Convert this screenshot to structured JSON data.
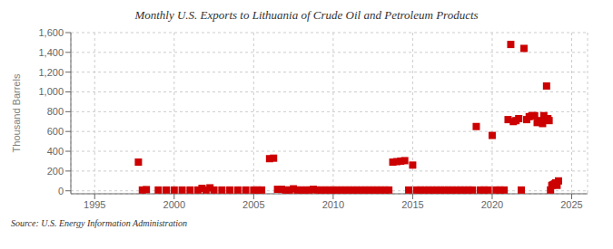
{
  "chart_data": {
    "type": "scatter",
    "title": "Monthly U.S. Exports to Lithuania of Crude Oil and Petroleum Products",
    "ylabel": "Thousand Barrels",
    "annotations": [
      "Source: U.S. Energy Information Administration"
    ],
    "color": "#cc0000",
    "marker": "square",
    "grid": true,
    "xlim": [
      1993.5,
      2026.0
    ],
    "xticks": [
      1995,
      2000,
      2005,
      2010,
      2015,
      2020,
      2025
    ],
    "ylim": [
      -30,
      1600
    ],
    "yticks": [
      0,
      200,
      400,
      600,
      800,
      {
        "value": 1000,
        "label": "1,000"
      },
      {
        "value": 1200,
        "label": "1,200"
      },
      {
        "value": 1400,
        "label": "1,400"
      },
      {
        "value": 1600,
        "label": "1,600"
      }
    ],
    "x": [
      1997.75,
      1998.0,
      1998.25,
      1999.0,
      1999.5,
      2000.0,
      2000.5,
      2001.0,
      2001.5,
      2001.75,
      2002.0,
      2002.25,
      2002.5,
      2003.0,
      2003.5,
      2004.0,
      2004.5,
      2005.0,
      2005.25,
      2005.5,
      2006.0,
      2006.25,
      2006.5,
      2006.75,
      2007.0,
      2007.25,
      2007.5,
      2007.75,
      2008.0,
      2008.25,
      2008.5,
      2008.75,
      2009.0,
      2009.25,
      2009.5,
      2009.75,
      2010.0,
      2010.25,
      2010.5,
      2010.75,
      2011.0,
      2011.25,
      2011.5,
      2011.75,
      2012.0,
      2012.25,
      2012.5,
      2012.75,
      2013.0,
      2013.25,
      2013.5,
      2013.75,
      2014.0,
      2014.25,
      2014.5,
      2014.75,
      2015.0,
      2015.25,
      2015.5,
      2015.75,
      2016.0,
      2016.25,
      2016.5,
      2016.75,
      2017.0,
      2017.25,
      2017.5,
      2017.75,
      2018.0,
      2018.25,
      2018.5,
      2018.75,
      2019.0,
      2019.25,
      2019.5,
      2019.75,
      2020.0,
      2020.25,
      2020.5,
      2020.75,
      2021.0,
      2021.17,
      2021.33,
      2021.5,
      2021.67,
      2021.83,
      2022.0,
      2022.17,
      2022.33,
      2022.5,
      2022.67,
      2022.83,
      2023.0,
      2023.08,
      2023.17,
      2023.25,
      2023.33,
      2023.42,
      2023.5,
      2023.58,
      2023.67,
      2023.75,
      2023.83,
      2023.92,
      2024.0,
      2024.08,
      2024.17
    ],
    "values": [
      290,
      8,
      12,
      8,
      8,
      8,
      8,
      8,
      8,
      25,
      8,
      30,
      8,
      8,
      8,
      8,
      8,
      8,
      8,
      8,
      325,
      330,
      15,
      15,
      8,
      8,
      20,
      8,
      8,
      8,
      8,
      15,
      8,
      8,
      8,
      8,
      8,
      8,
      8,
      8,
      8,
      8,
      8,
      8,
      8,
      8,
      8,
      8,
      8,
      8,
      8,
      290,
      295,
      300,
      305,
      8,
      260,
      8,
      8,
      8,
      8,
      8,
      8,
      8,
      8,
      8,
      8,
      8,
      8,
      8,
      8,
      8,
      650,
      8,
      8,
      8,
      560,
      8,
      8,
      8,
      720,
      1480,
      700,
      710,
      730,
      8,
      1440,
      720,
      750,
      760,
      760,
      690,
      700,
      710,
      680,
      760,
      720,
      1060,
      730,
      710,
      8,
      55,
      60,
      70,
      80,
      55,
      100
    ]
  }
}
